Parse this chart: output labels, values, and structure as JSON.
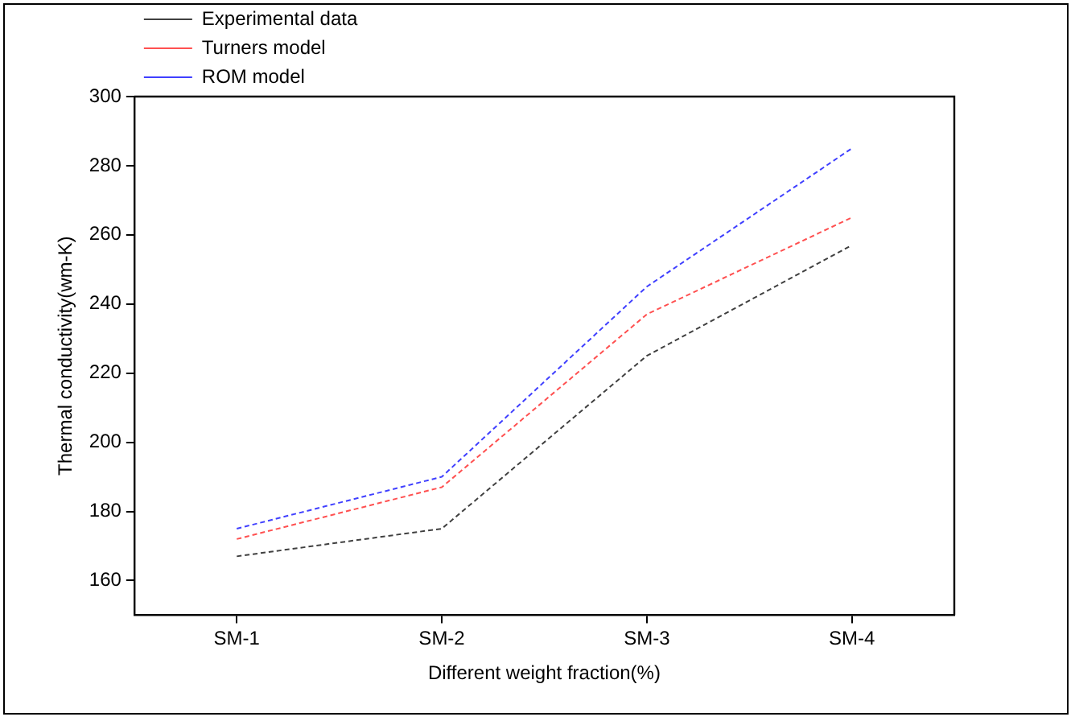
{
  "chart_data": {
    "type": "line",
    "xlabel": "Different weight fraction(%)",
    "ylabel": "Thermal conductivity(wm-K)",
    "categories": [
      "SM-1",
      "SM-2",
      "SM-3",
      "SM-4"
    ],
    "series": [
      {
        "name": "Experimental data",
        "color": "#404040",
        "values": [
          167,
          175,
          225,
          257
        ]
      },
      {
        "name": "Turners model",
        "color": "#ff5050",
        "values": [
          172,
          187,
          237,
          265
        ]
      },
      {
        "name": "ROM model",
        "color": "#4040ff",
        "values": [
          175,
          190,
          245,
          285
        ]
      }
    ],
    "ylim": [
      150,
      300
    ],
    "yticks": [
      160,
      180,
      200,
      220,
      240,
      260,
      280,
      300
    ],
    "grid": false,
    "legend": "top left",
    "marker": "none",
    "line_style": "dashed"
  }
}
